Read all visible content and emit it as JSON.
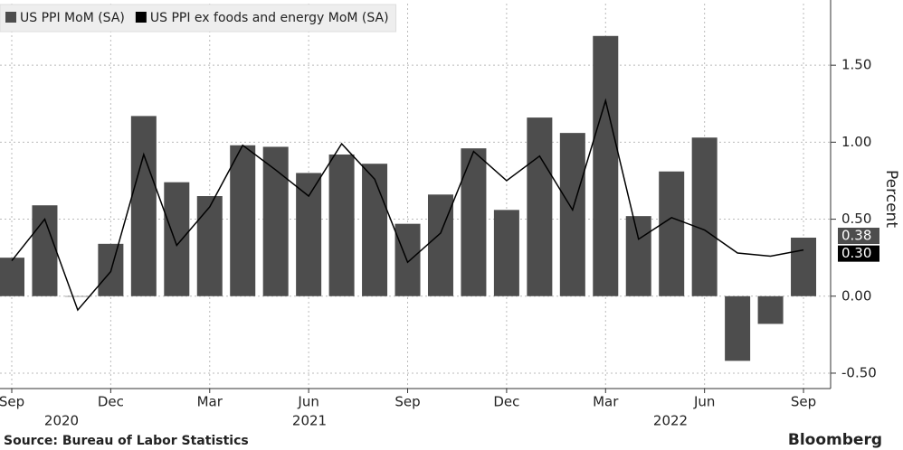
{
  "chart_data": {
    "type": "bar-line",
    "categories": [
      "Sep",
      null,
      null,
      "Dec",
      null,
      null,
      "Mar",
      null,
      null,
      "Jun",
      null,
      null,
      "Sep",
      null,
      null,
      "Dec",
      null,
      null,
      "Mar",
      null,
      null,
      "Jun",
      null,
      null,
      "Sep"
    ],
    "x_groups": [
      "2020",
      "2021",
      "2022"
    ],
    "series": [
      {
        "name": "US PPI MoM (SA)",
        "color": "#4d4d4d",
        "kind": "bar",
        "values": [
          0.25,
          0.59,
          0.0,
          0.34,
          1.17,
          0.74,
          0.65,
          0.98,
          0.97,
          0.8,
          0.92,
          0.86,
          0.47,
          0.66,
          0.96,
          0.56,
          1.16,
          1.06,
          1.69,
          0.52,
          0.81,
          1.03,
          -0.42,
          -0.18,
          0.38
        ],
        "last_label": "0.38"
      },
      {
        "name": "US PPI ex foods and energy MoM (SA)",
        "color": "#000000",
        "kind": "line",
        "values": [
          0.23,
          0.5,
          -0.09,
          0.16,
          0.92,
          0.33,
          0.58,
          0.98,
          0.82,
          0.65,
          0.99,
          0.76,
          0.22,
          0.41,
          0.94,
          0.75,
          0.91,
          0.56,
          1.27,
          0.37,
          0.51,
          0.43,
          0.28,
          0.26,
          0.3
        ],
        "last_label": "0.30"
      }
    ],
    "ylim": [
      -0.6,
      1.9
    ],
    "yticks": [
      {
        "value": -0.5,
        "label": "-0.50"
      },
      {
        "value": 0,
        "label": "0.00"
      },
      {
        "value": 0.5,
        "label": "0.50"
      },
      {
        "value": 1,
        "label": "1.00"
      },
      {
        "value": 1.5,
        "label": "1.50"
      }
    ],
    "y_label": "Percent",
    "grid": true,
    "source": "Source: Bureau of Labor Statistics",
    "brand": "Bloomberg"
  }
}
